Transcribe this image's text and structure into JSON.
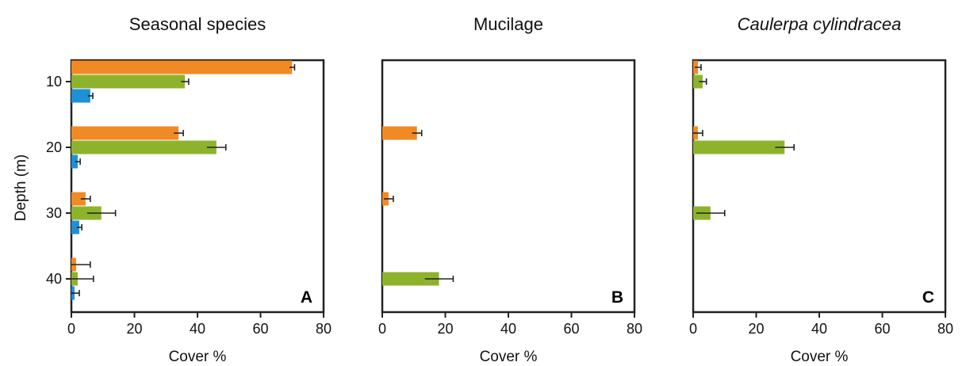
{
  "figure": {
    "ylabel": "Depth (m)",
    "depths": [
      "10",
      "20",
      "30",
      "40"
    ],
    "series_colors": [
      "#f08a24",
      "#8db32c",
      "#1f8fd6"
    ]
  },
  "chart_data": [
    {
      "type": "bar",
      "orientation": "horizontal",
      "title": "Seasonal species",
      "title_italic": false,
      "panel_letter": "A",
      "xlabel": "Cover %",
      "ylabel": "Depth (m)",
      "categories": [
        "10",
        "20",
        "30",
        "40"
      ],
      "xlim": [
        0,
        80
      ],
      "xticks": [
        0,
        20,
        40,
        60,
        80
      ],
      "series": [
        {
          "color": "#f08a24",
          "values": [
            70,
            34,
            4.5,
            1.5
          ],
          "errors": [
            0.8,
            1.5,
            1.5,
            4.5
          ]
        },
        {
          "color": "#8db32c",
          "values": [
            36,
            46,
            9.5,
            2
          ],
          "errors": [
            1.2,
            3,
            4.5,
            5
          ]
        },
        {
          "color": "#1f8fd6",
          "values": [
            6,
            2,
            2.5,
            1
          ],
          "errors": [
            0.8,
            0.8,
            0.8,
            1.5
          ]
        }
      ]
    },
    {
      "type": "bar",
      "orientation": "horizontal",
      "title": "Mucilage",
      "title_italic": false,
      "panel_letter": "B",
      "xlabel": "Cover %",
      "categories": [
        "10",
        "20",
        "30",
        "40"
      ],
      "xlim": [
        0,
        80
      ],
      "xticks": [
        0,
        20,
        40,
        60,
        80
      ],
      "series": [
        {
          "color": "#f08a24",
          "values": [
            0,
            11,
            2,
            0
          ],
          "errors": [
            0,
            1.5,
            1.5,
            0
          ]
        },
        {
          "color": "#8db32c",
          "values": [
            0,
            0,
            0,
            18
          ],
          "errors": [
            0,
            0,
            0,
            4.5
          ]
        },
        {
          "color": "#1f8fd6",
          "values": [
            0,
            0,
            0,
            0
          ],
          "errors": [
            0,
            0,
            0,
            0
          ]
        }
      ]
    },
    {
      "type": "bar",
      "orientation": "horizontal",
      "title": "Caulerpa cylindracea",
      "title_italic": true,
      "panel_letter": "C",
      "xlabel": "Cover %",
      "categories": [
        "10",
        "20",
        "30",
        "40"
      ],
      "xlim": [
        0,
        80
      ],
      "xticks": [
        0,
        20,
        40,
        60,
        80
      ],
      "series": [
        {
          "color": "#f08a24",
          "values": [
            1.5,
            1.5,
            0,
            0
          ],
          "errors": [
            1,
            1.5,
            0,
            0
          ]
        },
        {
          "color": "#8db32c",
          "values": [
            3,
            29,
            5.5,
            0
          ],
          "errors": [
            1.2,
            3,
            4.5,
            0
          ]
        },
        {
          "color": "#1f8fd6",
          "values": [
            0,
            0,
            0,
            0
          ],
          "errors": [
            0,
            0,
            0,
            0
          ]
        }
      ]
    }
  ]
}
